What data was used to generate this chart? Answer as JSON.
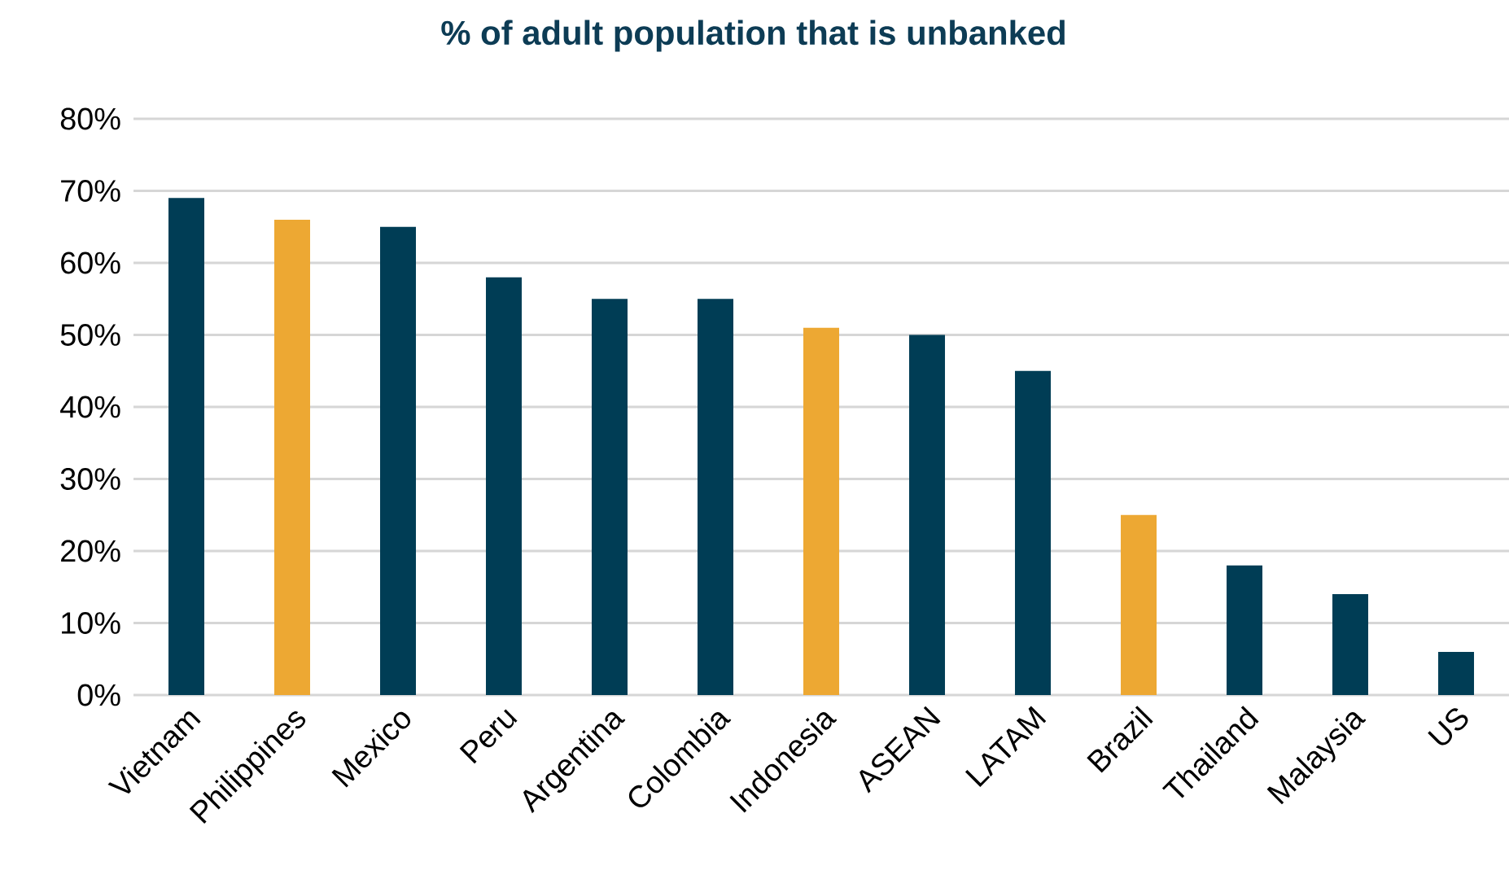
{
  "chart_data": {
    "type": "bar",
    "title": "% of adult population that is unbanked",
    "categories": [
      "Vietnam",
      "Philippines",
      "Mexico",
      "Peru",
      "Argentina",
      "Colombia",
      "Indonesia",
      "ASEAN",
      "LATAM",
      "Brazil",
      "Thailand",
      "Malaysia",
      "US"
    ],
    "values": [
      69,
      66,
      65,
      58,
      55,
      55,
      51,
      50,
      45,
      25,
      18,
      14,
      6
    ],
    "colors": [
      "#003d55",
      "#eda833",
      "#003d55",
      "#003d55",
      "#003d55",
      "#003d55",
      "#eda833",
      "#003d55",
      "#003d55",
      "#eda833",
      "#003d55",
      "#003d55",
      "#003d55"
    ],
    "ylim": [
      0,
      80
    ],
    "yticks": [
      {
        "value": 0,
        "label": "0%"
      },
      {
        "value": 10,
        "label": "10%"
      },
      {
        "value": 20,
        "label": "20%"
      },
      {
        "value": 30,
        "label": "30%"
      },
      {
        "value": 40,
        "label": "40%"
      },
      {
        "value": 50,
        "label": "50%"
      },
      {
        "value": 60,
        "label": "60%"
      },
      {
        "value": 70,
        "label": "70%"
      },
      {
        "value": 80,
        "label": "80%"
      }
    ],
    "grid": "y"
  }
}
